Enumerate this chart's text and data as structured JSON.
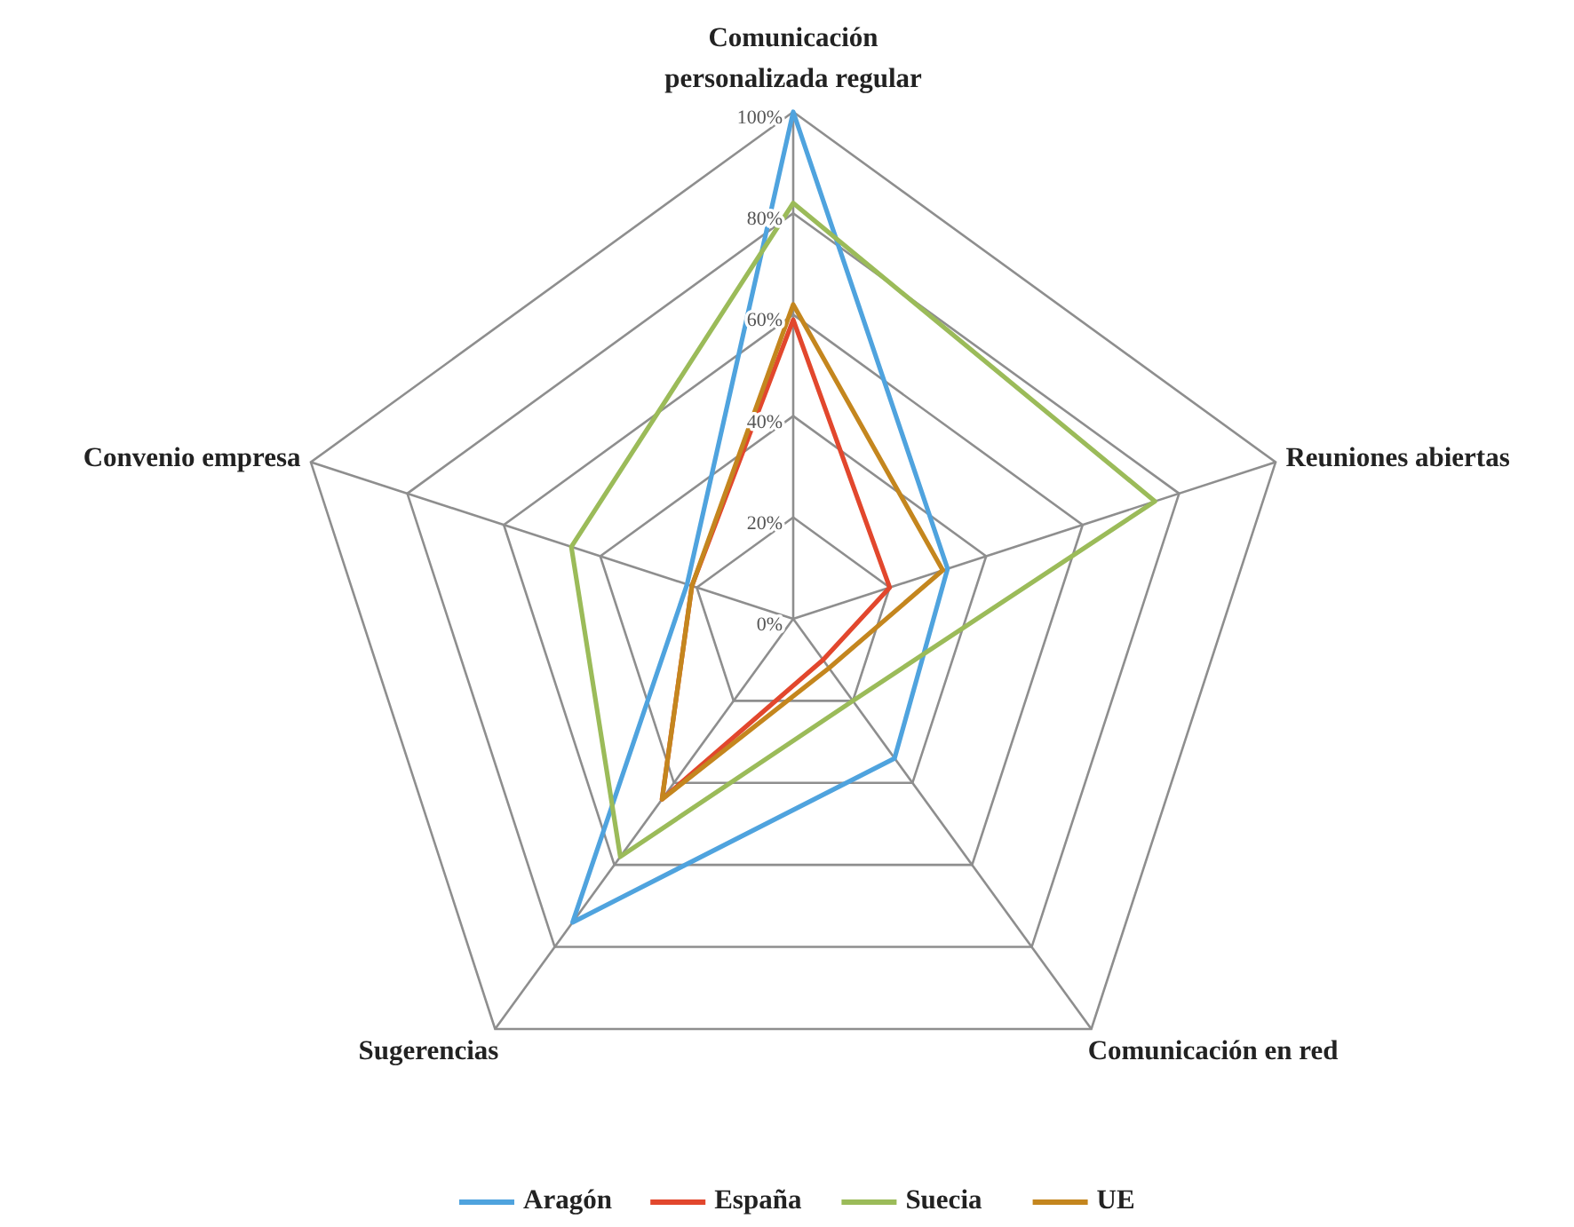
{
  "chart_data": {
    "type": "radar",
    "categories": [
      "Comunicación personalizada regular",
      "Reuniones abiertas",
      "Comunicación en red",
      "Sugerencias",
      "Convenio empresa"
    ],
    "series": [
      {
        "name": "Aragón",
        "color": "#4fa3de",
        "values": [
          100,
          32,
          34,
          74,
          22
        ]
      },
      {
        "name": "España",
        "color": "#e2472d",
        "values": [
          59,
          20,
          10,
          44,
          21
        ]
      },
      {
        "name": "Suecia",
        "color": "#9bbb59",
        "values": [
          82,
          75,
          20,
          58,
          46
        ]
      },
      {
        "name": "UE",
        "color": "#c4861e",
        "values": [
          62,
          31,
          12,
          44,
          21
        ]
      }
    ],
    "ylim": [
      0,
      100
    ],
    "yticks": [
      {
        "value": 0,
        "label": "0%"
      },
      {
        "value": 20,
        "label": "20%"
      },
      {
        "value": 40,
        "label": "40%"
      },
      {
        "value": 60,
        "label": "60%"
      },
      {
        "value": 80,
        "label": "80%"
      },
      {
        "value": 100,
        "label": "100%"
      }
    ],
    "grid": true,
    "legend": "bottom"
  }
}
